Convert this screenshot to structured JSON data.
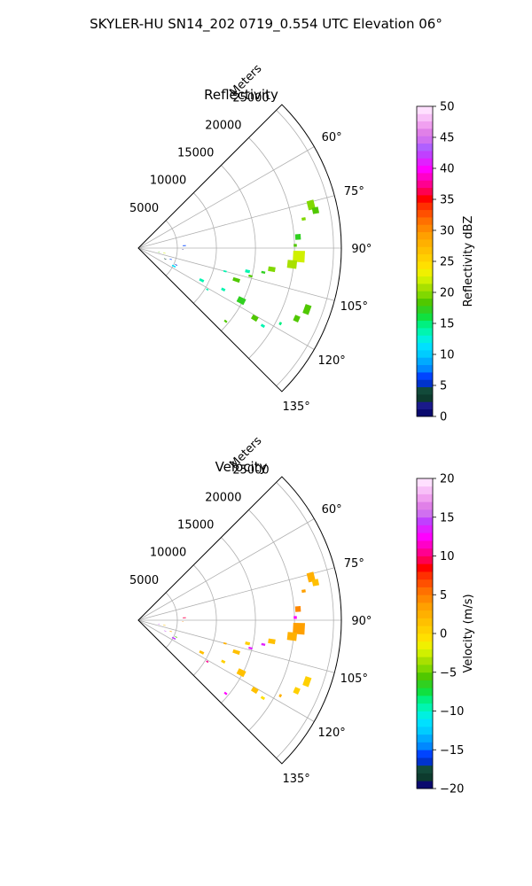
{
  "title": "SKYLER-HU  SN14_202  0719_0.554 UTC Elevation 06°",
  "panels": [
    {
      "title": "Reflectivity",
      "range_label": "Meters",
      "range_ticks": [
        "5000",
        "10000",
        "15000",
        "20000",
        "25000"
      ],
      "azimuth_ticks": [
        "60°",
        "75°",
        "90°",
        "105°",
        "120°",
        "135°"
      ],
      "colorbar": {
        "label": "Reflectivity dBZ",
        "min": 0,
        "max": 50,
        "ticks": [
          "0",
          "5",
          "10",
          "15",
          "20",
          "25",
          "30",
          "35",
          "40",
          "45",
          "50"
        ],
        "colors": [
          "#0a0a6e",
          "#1a1a8a",
          "#0d3b2e",
          "#124a3a",
          "#0033cc",
          "#0044ff",
          "#0088ff",
          "#00aaff",
          "#00ccff",
          "#00e0ff",
          "#00f0e0",
          "#00f5b0",
          "#00f080",
          "#10e040",
          "#30d020",
          "#50c800",
          "#80d800",
          "#a8e000",
          "#d0f000",
          "#f0f000",
          "#ffe000",
          "#ffd000",
          "#ffc000",
          "#ffb000",
          "#ffa000",
          "#ff8800",
          "#ff7000",
          "#ff5000",
          "#ff3000",
          "#ff0000",
          "#ff0050",
          "#ff0090",
          "#ff00c8",
          "#ff00ff",
          "#e020ff",
          "#c040ff",
          "#b060ff",
          "#d070f0",
          "#e080e8",
          "#f0a0f0",
          "#f8c0f8",
          "#ffe0ff"
        ]
      }
    },
    {
      "title": "Velocity",
      "range_label": "Meters",
      "range_ticks": [
        "5000",
        "10000",
        "15000",
        "20000",
        "25000"
      ],
      "azimuth_ticks": [
        "60°",
        "75°",
        "90°",
        "105°",
        "120°",
        "135°"
      ],
      "colorbar": {
        "label": "Velocity (m/s)",
        "min": -20,
        "max": 20,
        "ticks": [
          "−20",
          "−15",
          "−10",
          "−5",
          "0",
          "5",
          "10",
          "15",
          "20"
        ],
        "colors": [
          "#0a0a6e",
          "#0d3b2e",
          "#124a3a",
          "#0033cc",
          "#0044ff",
          "#0088ff",
          "#00aaff",
          "#00ccff",
          "#00e0ff",
          "#00f0e0",
          "#00f5b0",
          "#00f080",
          "#10e040",
          "#30d020",
          "#50c800",
          "#80d800",
          "#a8e000",
          "#d0f000",
          "#f0f000",
          "#ffe000",
          "#ffd000",
          "#ffc000",
          "#ffb000",
          "#ffa000",
          "#ff8800",
          "#ff7000",
          "#ff5000",
          "#ff3000",
          "#ff0000",
          "#ff0050",
          "#ff0090",
          "#ff00c8",
          "#ff00ff",
          "#e020ff",
          "#c040ff",
          "#d070f0",
          "#e080e8",
          "#f0a0f0",
          "#f8c0f8",
          "#ffe0ff"
        ]
      }
    }
  ],
  "chart_data": [
    {
      "type": "heatmap",
      "subtype": "polar-sector (PPI)",
      "title": "Reflectivity",
      "range_label": "Meters",
      "range_max": 26000,
      "range_ticks": [
        5000,
        10000,
        15000,
        20000,
        25000
      ],
      "azimuth_range_deg": [
        45,
        135
      ],
      "azimuth_ticks_deg": [
        60,
        75,
        90,
        105,
        120,
        135
      ],
      "grid": true,
      "colorbar_label": "Reflectivity dBZ",
      "colorbar_range": [
        0,
        50
      ],
      "echoes": [
        {
          "az": 76,
          "r": 22800,
          "dr": 900,
          "daz": 3,
          "value": 20
        },
        {
          "az": 78,
          "r": 23200,
          "dr": 800,
          "daz": 2,
          "value": 19
        },
        {
          "az": 80,
          "r": 21500,
          "dr": 500,
          "daz": 1,
          "value": 20
        },
        {
          "az": 86,
          "r": 20500,
          "dr": 700,
          "daz": 2,
          "value": 17
        },
        {
          "az": 89,
          "r": 20100,
          "dr": 400,
          "daz": 1,
          "value": 18
        },
        {
          "az": 93,
          "r": 20600,
          "dr": 1500,
          "daz": 4,
          "value": 22
        },
        {
          "az": 96,
          "r": 19800,
          "dr": 1200,
          "daz": 3,
          "value": 21
        },
        {
          "az": 99,
          "r": 17300,
          "dr": 900,
          "daz": 2,
          "value": 20
        },
        {
          "az": 101,
          "r": 16300,
          "dr": 500,
          "daz": 1,
          "value": 17
        },
        {
          "az": 102,
          "r": 14300,
          "dr": 600,
          "daz": 1.5,
          "value": 14
        },
        {
          "az": 104,
          "r": 14800,
          "dr": 500,
          "daz": 1,
          "value": 18
        },
        {
          "az": 108,
          "r": 13200,
          "dr": 900,
          "daz": 2,
          "value": 18
        },
        {
          "az": 105,
          "r": 11500,
          "dr": 400,
          "daz": 1,
          "value": 14
        },
        {
          "az": 110,
          "r": 23000,
          "dr": 800,
          "daz": 3,
          "value": 19
        },
        {
          "az": 114,
          "r": 22200,
          "dr": 700,
          "daz": 2,
          "value": 18
        },
        {
          "az": 117,
          "r": 14800,
          "dr": 1000,
          "daz": 3,
          "value": 17
        },
        {
          "az": 116,
          "r": 12100,
          "dr": 500,
          "daz": 1.5,
          "value": 14
        },
        {
          "az": 121,
          "r": 17400,
          "dr": 800,
          "daz": 2,
          "value": 18
        },
        {
          "az": 122,
          "r": 18800,
          "dr": 500,
          "daz": 1,
          "value": 14
        },
        {
          "az": 118,
          "r": 20600,
          "dr": 300,
          "daz": 1,
          "value": 15
        },
        {
          "az": 117,
          "r": 9100,
          "dr": 600,
          "daz": 2,
          "value": 14
        },
        {
          "az": 121,
          "r": 10300,
          "dr": 300,
          "daz": 1,
          "value": 14
        },
        {
          "az": 117,
          "r": 5100,
          "dr": 500,
          "daz": 2,
          "value": 11
        },
        {
          "az": 114,
          "r": 5300,
          "dr": 300,
          "daz": 1,
          "value": 5
        },
        {
          "az": 109,
          "r": 4400,
          "dr": 300,
          "daz": 1,
          "value": 6
        },
        {
          "az": 112,
          "r": 3700,
          "dr": 300,
          "daz": 1,
          "value": 3
        },
        {
          "az": 101,
          "r": 3400,
          "dr": 300,
          "daz": 1,
          "value": 22
        },
        {
          "az": 101,
          "r": 2700,
          "dr": 200,
          "daz": 1,
          "value": 18
        },
        {
          "az": 87,
          "r": 5900,
          "dr": 400,
          "daz": 1,
          "value": 7
        },
        {
          "az": 92,
          "r": 5700,
          "dr": 150,
          "daz": 0.5,
          "value": 2
        },
        {
          "az": 130,
          "r": 14600,
          "dr": 400,
          "daz": 1,
          "value": 18
        }
      ]
    },
    {
      "type": "heatmap",
      "subtype": "polar-sector (PPI)",
      "title": "Velocity",
      "range_label": "Meters",
      "range_max": 26000,
      "range_ticks": [
        5000,
        10000,
        15000,
        20000,
        25000
      ],
      "azimuth_range_deg": [
        45,
        135
      ],
      "azimuth_ticks_deg": [
        60,
        75,
        90,
        105,
        120,
        135
      ],
      "grid": true,
      "colorbar_label": "Velocity (m/s)",
      "colorbar_range": [
        -20,
        20
      ],
      "echoes": [
        {
          "az": 76,
          "r": 22800,
          "dr": 900,
          "daz": 3,
          "value": 2
        },
        {
          "az": 78,
          "r": 23200,
          "dr": 800,
          "daz": 2,
          "value": 1
        },
        {
          "az": 80,
          "r": 21500,
          "dr": 500,
          "daz": 1,
          "value": 3
        },
        {
          "az": 86,
          "r": 20500,
          "dr": 700,
          "daz": 2,
          "value": 4
        },
        {
          "az": 89,
          "r": 20100,
          "dr": 400,
          "daz": 1,
          "value": 12
        },
        {
          "az": 93,
          "r": 20600,
          "dr": 1500,
          "daz": 4,
          "value": 3
        },
        {
          "az": 96,
          "r": 19800,
          "dr": 1200,
          "daz": 3,
          "value": 2
        },
        {
          "az": 99,
          "r": 17300,
          "dr": 900,
          "daz": 2,
          "value": 1
        },
        {
          "az": 101,
          "r": 16300,
          "dr": 500,
          "daz": 1,
          "value": 13
        },
        {
          "az": 102,
          "r": 14300,
          "dr": 600,
          "daz": 1.5,
          "value": 0
        },
        {
          "az": 104,
          "r": 14800,
          "dr": 500,
          "daz": 1,
          "value": 13
        },
        {
          "az": 108,
          "r": 13200,
          "dr": 900,
          "daz": 2,
          "value": 1
        },
        {
          "az": 105,
          "r": 11500,
          "dr": 400,
          "daz": 1,
          "value": 2
        },
        {
          "az": 110,
          "r": 23000,
          "dr": 800,
          "daz": 3,
          "value": 0
        },
        {
          "az": 114,
          "r": 22200,
          "dr": 700,
          "daz": 2,
          "value": 0
        },
        {
          "az": 117,
          "r": 14800,
          "dr": 1000,
          "daz": 3,
          "value": 1
        },
        {
          "az": 116,
          "r": 12100,
          "dr": 500,
          "daz": 1.5,
          "value": 0
        },
        {
          "az": 121,
          "r": 17400,
          "dr": 800,
          "daz": 2,
          "value": 1
        },
        {
          "az": 122,
          "r": 18800,
          "dr": 500,
          "daz": 1,
          "value": -1
        },
        {
          "az": 118,
          "r": 20600,
          "dr": 300,
          "daz": 1,
          "value": 2
        },
        {
          "az": 117,
          "r": 9100,
          "dr": 600,
          "daz": 2,
          "value": 1
        },
        {
          "az": 121,
          "r": 10300,
          "dr": 300,
          "daz": 1,
          "value": 10
        },
        {
          "az": 117,
          "r": 5100,
          "dr": 500,
          "daz": 2,
          "value": 14
        },
        {
          "az": 114,
          "r": 5300,
          "dr": 300,
          "daz": 1,
          "value": -6
        },
        {
          "az": 109,
          "r": 4400,
          "dr": 300,
          "daz": 1,
          "value": 2
        },
        {
          "az": 112,
          "r": 3700,
          "dr": 300,
          "daz": 1,
          "value": 15
        },
        {
          "az": 101,
          "r": 3400,
          "dr": 300,
          "daz": 1,
          "value": 1
        },
        {
          "az": 101,
          "r": 2700,
          "dr": 200,
          "daz": 1,
          "value": 14
        },
        {
          "az": 87,
          "r": 5900,
          "dr": 400,
          "daz": 1,
          "value": 9
        },
        {
          "az": 92,
          "r": 5700,
          "dr": 150,
          "daz": 0.5,
          "value": 4
        },
        {
          "az": 130,
          "r": 14600,
          "dr": 400,
          "daz": 1,
          "value": 12
        }
      ]
    }
  ]
}
